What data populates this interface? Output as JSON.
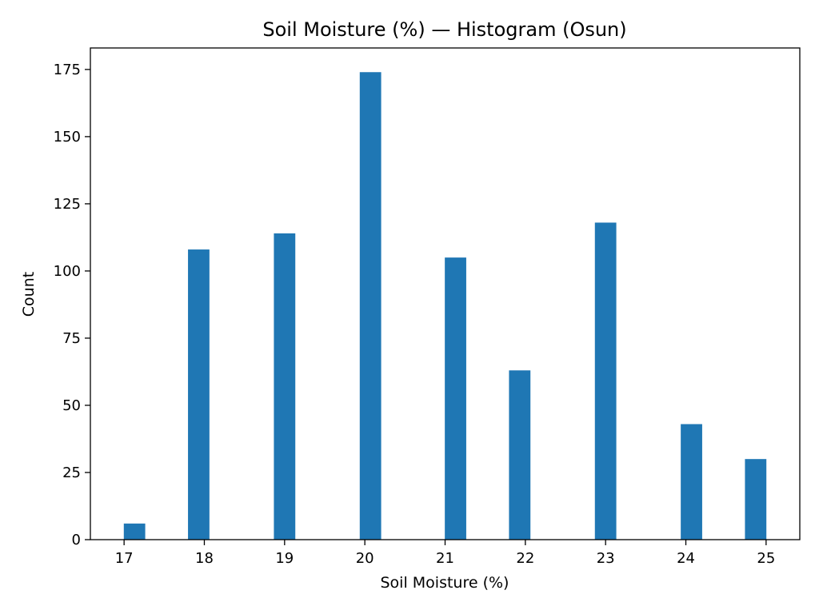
{
  "chart_data": {
    "type": "bar",
    "title": "Soil Moisture (%) — Histogram (Osun)",
    "xlabel": "Soil Moisture (%)",
    "ylabel": "Count",
    "xlim": [
      16.58,
      25.42
    ],
    "ylim": [
      0,
      183
    ],
    "xticks": [
      17,
      18,
      19,
      20,
      21,
      22,
      23,
      24,
      25
    ],
    "yticks": [
      0,
      25,
      50,
      75,
      100,
      125,
      150,
      175
    ],
    "bin_width": 0.267,
    "bins": [
      {
        "x": 17.13,
        "count": 6
      },
      {
        "x": 17.93,
        "count": 108
      },
      {
        "x": 19.0,
        "count": 114
      },
      {
        "x": 20.07,
        "count": 174
      },
      {
        "x": 21.13,
        "count": 105
      },
      {
        "x": 21.93,
        "count": 63
      },
      {
        "x": 23.0,
        "count": 118
      },
      {
        "x": 24.07,
        "count": 43
      },
      {
        "x": 24.87,
        "count": 30
      }
    ],
    "bar_color": "#1f77b4",
    "grid": false,
    "legend": "none"
  }
}
